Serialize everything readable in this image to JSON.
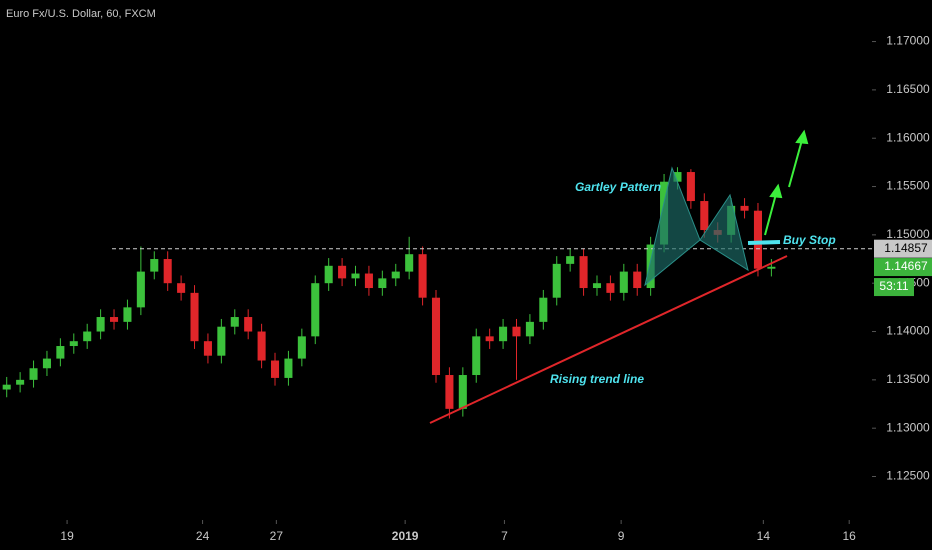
{
  "chart_data": {
    "type": "candlestick",
    "title": "Euro Fx/U.S. Dollar, 60, FXCM",
    "x": [
      0,
      1,
      2,
      3,
      4,
      5,
      6,
      7,
      8,
      9,
      10,
      11,
      12,
      13,
      14,
      15,
      16,
      17,
      18,
      19,
      20,
      21,
      22,
      23,
      24,
      25,
      26,
      27,
      28,
      29,
      30,
      31,
      32,
      33,
      34,
      35,
      36,
      37,
      38,
      39,
      40,
      41,
      42,
      43,
      44,
      45,
      46,
      47,
      48,
      49,
      50,
      51,
      52,
      53,
      54,
      55,
      56,
      57
    ],
    "open": [
      1.134,
      1.1345,
      1.135,
      1.1362,
      1.1372,
      1.1385,
      1.139,
      1.14,
      1.1415,
      1.141,
      1.1425,
      1.1462,
      1.1475,
      1.145,
      1.144,
      1.139,
      1.1375,
      1.1405,
      1.1415,
      1.14,
      1.137,
      1.1352,
      1.1372,
      1.1395,
      1.145,
      1.1468,
      1.1455,
      1.146,
      1.1445,
      1.1455,
      1.1462,
      1.148,
      1.1435,
      1.1355,
      1.132,
      1.1355,
      1.1395,
      1.139,
      1.1405,
      1.1395,
      1.141,
      1.1435,
      1.147,
      1.1478,
      1.1445,
      1.145,
      1.144,
      1.1462,
      1.1445,
      1.149,
      1.1555,
      1.1565,
      1.1535,
      1.1505,
      1.15,
      1.153,
      1.1525,
      1.1465
    ],
    "high": [
      1.1353,
      1.1358,
      1.137,
      1.138,
      1.1393,
      1.1398,
      1.1408,
      1.1423,
      1.1423,
      1.1433,
      1.1488,
      1.1483,
      1.1483,
      1.1458,
      1.1448,
      1.1398,
      1.1413,
      1.1423,
      1.1423,
      1.1408,
      1.1378,
      1.138,
      1.1403,
      1.1458,
      1.1476,
      1.1476,
      1.1468,
      1.1468,
      1.1463,
      1.147,
      1.1498,
      1.1488,
      1.1443,
      1.1363,
      1.1363,
      1.1403,
      1.1403,
      1.1413,
      1.1413,
      1.1418,
      1.1443,
      1.1478,
      1.1486,
      1.1486,
      1.1458,
      1.1458,
      1.147,
      1.147,
      1.1498,
      1.1563,
      1.157,
      1.1568,
      1.1543,
      1.1513,
      1.1538,
      1.1538,
      1.1533,
      1.1475
    ],
    "low": [
      1.1332,
      1.1337,
      1.1342,
      1.1354,
      1.1364,
      1.1377,
      1.1382,
      1.1392,
      1.1402,
      1.1402,
      1.1417,
      1.1454,
      1.1442,
      1.1432,
      1.1382,
      1.1367,
      1.1367,
      1.1397,
      1.1392,
      1.1362,
      1.1344,
      1.1344,
      1.1364,
      1.1387,
      1.1442,
      1.1447,
      1.1447,
      1.1437,
      1.1437,
      1.1447,
      1.1454,
      1.1427,
      1.1347,
      1.131,
      1.1312,
      1.1347,
      1.1382,
      1.1382,
      1.135,
      1.1387,
      1.1402,
      1.1427,
      1.1462,
      1.1437,
      1.1437,
      1.1432,
      1.1432,
      1.1437,
      1.1437,
      1.1482,
      1.1547,
      1.1527,
      1.1497,
      1.1492,
      1.1492,
      1.1517,
      1.1457,
      1.1457
    ],
    "close": [
      1.1345,
      1.135,
      1.1362,
      1.1372,
      1.1385,
      1.139,
      1.14,
      1.1415,
      1.141,
      1.1425,
      1.1462,
      1.1475,
      1.145,
      1.144,
      1.139,
      1.1375,
      1.1405,
      1.1415,
      1.14,
      1.137,
      1.1352,
      1.1372,
      1.1395,
      1.145,
      1.1468,
      1.1455,
      1.146,
      1.1445,
      1.1455,
      1.1462,
      1.148,
      1.1435,
      1.1355,
      1.132,
      1.1355,
      1.1395,
      1.139,
      1.1405,
      1.1395,
      1.141,
      1.1435,
      1.147,
      1.1478,
      1.1445,
      1.145,
      1.144,
      1.1462,
      1.1445,
      1.149,
      1.1555,
      1.1565,
      1.1535,
      1.1505,
      1.15,
      1.153,
      1.1525,
      1.1465,
      1.1467
    ],
    "up_color": "#3cc13c",
    "down_color": "#e0262a",
    "xlim": [
      -0.5,
      64.5
    ],
    "xticks": [
      {
        "value": 4.5,
        "label": "19"
      },
      {
        "value": 14.6,
        "label": "24"
      },
      {
        "value": 20.1,
        "label": "27"
      },
      {
        "value": 29.7,
        "label": "2019"
      },
      {
        "value": 37.1,
        "label": "7"
      },
      {
        "value": 45.8,
        "label": "9"
      },
      {
        "value": 56.4,
        "label": "14"
      },
      {
        "value": 62.8,
        "label": "16"
      }
    ],
    "ylim": [
      1.1205,
      1.1743
    ],
    "yticks": [
      {
        "value": 1.125,
        "label": "1.12500"
      },
      {
        "value": 1.13,
        "label": "1.13000"
      },
      {
        "value": 1.135,
        "label": "1.13500"
      },
      {
        "value": 1.14,
        "label": "1.14000"
      },
      {
        "value": 1.145,
        "label": "1.14500"
      },
      {
        "value": 1.15,
        "label": "1.15000"
      },
      {
        "value": 1.155,
        "label": "1.15500"
      },
      {
        "value": 1.16,
        "label": "1.16000"
      },
      {
        "value": 1.165,
        "label": "1.16500"
      },
      {
        "value": 1.17,
        "label": "1.17000"
      }
    ],
    "level": 1.14857,
    "last_price": 1.14667,
    "countdown": "53:11",
    "annotations": [
      "Gartley Pattern",
      "Rising trend line",
      "Buy Stop"
    ]
  }
}
